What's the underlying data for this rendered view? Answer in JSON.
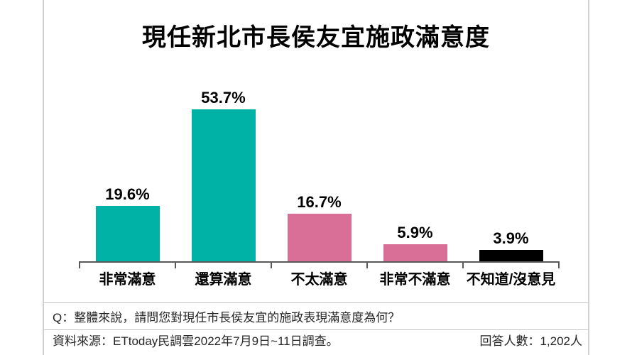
{
  "chart_data": {
    "type": "bar",
    "title": "現任新北市長侯友宜施政滿意度",
    "categories": [
      "非常滿意",
      "還算滿意",
      "不太滿意",
      "非常不滿意",
      "不知道/沒意見"
    ],
    "values": [
      19.6,
      53.7,
      16.7,
      5.9,
      3.9
    ],
    "value_labels": [
      "19.6%",
      "53.7%",
      "16.7%",
      "5.9%",
      "3.9%"
    ],
    "bar_colors": [
      "#00B1A6",
      "#00B1A6",
      "#D96F96",
      "#D96F96",
      "#000000"
    ],
    "xlabel": "",
    "ylabel": "",
    "ylim": [
      0,
      60
    ],
    "grid": false,
    "legend_position": "none"
  },
  "footer": {
    "question": "Q：整體來說，請問您對現任市長侯友宜的施政表現滿意度為何？",
    "source": "資料來源：ETtoday民調雲2022年7月9日~11日調查。",
    "respondents": "回答人數：1,202人"
  },
  "colors": {
    "satisfied_teal": "#00B1A6",
    "dissatisfied_pink": "#D96F96",
    "dont_know_black": "#000000",
    "axis_gray": "#595959",
    "frame_line_gray": "#d0d0d0",
    "background": "#ffffff"
  }
}
